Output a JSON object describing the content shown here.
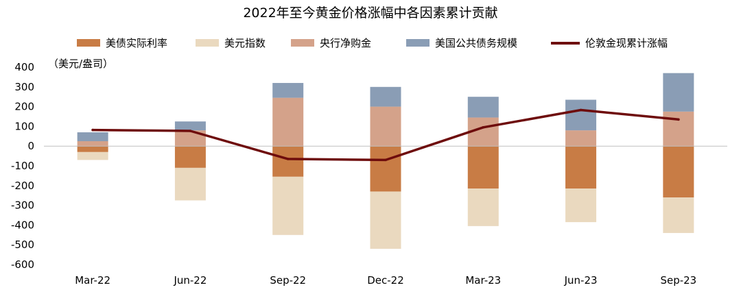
{
  "chart_data": {
    "type": "bar",
    "title": "2022年至今黄金价格涨幅中各因素累计贡献",
    "unit_label": "（美元/盎司）",
    "categories": [
      "Mar-22",
      "Jun-22",
      "Sep-22",
      "Dec-22",
      "Mar-23",
      "Jun-23",
      "Sep-23"
    ],
    "ylim": [
      -600,
      400
    ],
    "yticks": [
      400,
      300,
      200,
      100,
      0,
      -100,
      -200,
      -300,
      -400,
      -500,
      -600
    ],
    "stacked": true,
    "series": [
      {
        "name": "美债实际利率",
        "color": "#C87C45",
        "values": [
          -30,
          -110,
          -155,
          -230,
          -215,
          -215,
          -260
        ]
      },
      {
        "name": "美元指数",
        "color": "#EAD9BF",
        "values": [
          -40,
          -165,
          -295,
          -290,
          -190,
          -170,
          -180
        ]
      },
      {
        "name": "央行净购金",
        "color": "#D4A28A",
        "values": [
          25,
          80,
          245,
          200,
          145,
          80,
          175
        ]
      },
      {
        "name": "美国公共债务规模",
        "color": "#8A9DB5",
        "values": [
          45,
          45,
          75,
          100,
          105,
          155,
          195
        ]
      }
    ],
    "line": {
      "name": "伦敦金现累计涨幅",
      "color": "#6E0C0C",
      "values": [
        82,
        77,
        -65,
        -70,
        95,
        183,
        135
      ]
    }
  }
}
